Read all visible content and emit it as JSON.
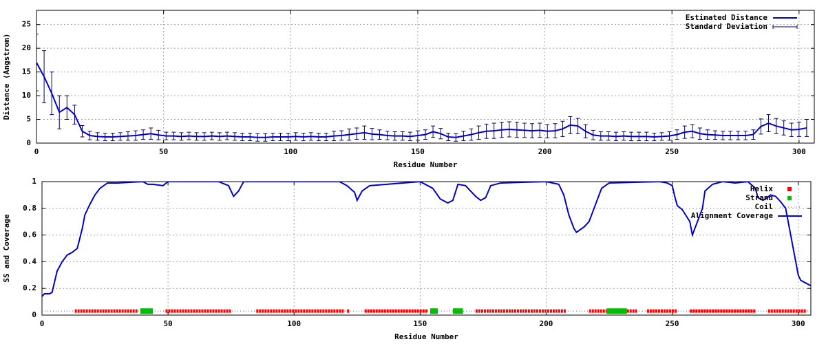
{
  "chart_data": [
    {
      "type": "errorline",
      "xlabel": "Residue Number",
      "ylabel": "Distance (Angstrom)",
      "xlim": [
        0,
        306
      ],
      "ylim": [
        0,
        28
      ],
      "xticks": [
        0,
        50,
        100,
        150,
        200,
        250,
        300
      ],
      "yticks": [
        0,
        5,
        10,
        15,
        20,
        25
      ],
      "grid": true,
      "legend": "top-right",
      "x": [
        0,
        3,
        6,
        9,
        12,
        15,
        18,
        21,
        24,
        27,
        30,
        33,
        36,
        39,
        42,
        45,
        48,
        51,
        54,
        57,
        60,
        63,
        66,
        69,
        72,
        75,
        78,
        81,
        84,
        87,
        90,
        93,
        96,
        99,
        102,
        105,
        108,
        111,
        114,
        117,
        120,
        123,
        126,
        129,
        132,
        135,
        138,
        141,
        144,
        147,
        150,
        153,
        156,
        159,
        162,
        165,
        168,
        171,
        174,
        177,
        180,
        183,
        186,
        189,
        192,
        195,
        198,
        201,
        204,
        207,
        210,
        213,
        216,
        219,
        222,
        225,
        228,
        231,
        234,
        237,
        240,
        243,
        246,
        249,
        252,
        255,
        258,
        261,
        264,
        267,
        270,
        273,
        276,
        279,
        282,
        285,
        288,
        291,
        294,
        297,
        300,
        303
      ],
      "series": [
        {
          "name": "Estimated Distance",
          "color": "#0000cc",
          "values": [
            17,
            14,
            10.5,
            6.5,
            7.5,
            6,
            2.5,
            1.6,
            1.4,
            1.3,
            1.3,
            1.4,
            1.5,
            1.6,
            1.8,
            2.0,
            1.7,
            1.5,
            1.5,
            1.4,
            1.5,
            1.4,
            1.4,
            1.5,
            1.4,
            1.5,
            1.4,
            1.3,
            1.3,
            1.2,
            1.2,
            1.3,
            1.3,
            1.3,
            1.4,
            1.3,
            1.4,
            1.3,
            1.3,
            1.5,
            1.6,
            1.8,
            2.0,
            2.2,
            1.9,
            1.8,
            1.6,
            1.5,
            1.5,
            1.4,
            1.6,
            1.8,
            2.4,
            2.0,
            1.3,
            1.2,
            1.5,
            1.8,
            2.2,
            2.5,
            2.6,
            2.8,
            2.9,
            2.8,
            2.7,
            2.6,
            2.7,
            2.5,
            2.6,
            3.0,
            3.8,
            3.6,
            2.5,
            1.7,
            1.5,
            1.5,
            1.4,
            1.5,
            1.4,
            1.4,
            1.4,
            1.3,
            1.4,
            1.5,
            1.8,
            2.3,
            2.5,
            2.0,
            1.8,
            1.7,
            1.6,
            1.6,
            1.6,
            1.6,
            1.8,
            3.5,
            4.2,
            3.6,
            3.2,
            2.8,
            2.9,
            3.2
          ]
        },
        {
          "name": "Standard Deviation",
          "color": "#000066",
          "values": [
            6,
            5.5,
            4.5,
            3.5,
            2.5,
            2,
            1.2,
            0.9,
            0.8,
            0.8,
            0.8,
            0.8,
            0.9,
            1,
            1,
            1.2,
            1,
            0.8,
            0.8,
            0.8,
            0.8,
            0.8,
            0.8,
            0.8,
            0.8,
            0.8,
            0.8,
            0.8,
            0.8,
            0.8,
            0.8,
            0.8,
            0.8,
            0.8,
            0.8,
            0.8,
            0.8,
            0.8,
            0.8,
            1,
            1,
            1.2,
            1.2,
            1.4,
            1.2,
            1,
            0.9,
            0.9,
            0.9,
            0.9,
            1,
            1,
            1.2,
            1.1,
            0.8,
            0.8,
            1,
            1.2,
            1.4,
            1.5,
            1.6,
            1.6,
            1.6,
            1.6,
            1.5,
            1.5,
            1.5,
            1.4,
            1.5,
            1.6,
            1.8,
            1.6,
            1.4,
            1,
            0.9,
            0.9,
            0.9,
            0.9,
            0.9,
            0.9,
            0.9,
            0.8,
            0.8,
            0.9,
            1,
            1.3,
            1.4,
            1.2,
            1,
            0.9,
            0.9,
            0.9,
            0.9,
            0.9,
            1,
            1.6,
            1.8,
            1.6,
            1.5,
            1.4,
            1.5,
            1.8
          ]
        }
      ]
    },
    {
      "type": "line",
      "xlabel": "Residue Number",
      "ylabel": "SS and Coverage",
      "xlim": [
        0,
        305
      ],
      "ylim": [
        0,
        1
      ],
      "xticks": [
        0,
        50,
        100,
        150,
        200,
        250,
        300
      ],
      "yticks": [
        0,
        0.2,
        0.4,
        0.6,
        0.8,
        1
      ],
      "grid": true,
      "legend": "top-right",
      "ss_level": 0.03,
      "ss": [
        {
          "name": "Helix",
          "color": "#ff0000",
          "ranges": [
            [
              13,
              38
            ],
            [
              49,
              75
            ],
            [
              85,
              120
            ],
            [
              121,
              122
            ],
            [
              128,
              153
            ],
            [
              172,
              208
            ],
            [
              217,
              224
            ],
            [
              232,
              236
            ],
            [
              240,
              252
            ],
            [
              257,
              283
            ],
            [
              288,
              303
            ]
          ]
        },
        {
          "name": "Strand",
          "color": "#00c000",
          "ranges": [
            [
              39,
              44
            ],
            [
              154,
              157
            ],
            [
              163,
              167
            ],
            [
              224,
              232
            ]
          ]
        },
        {
          "name": "Coil",
          "color": "#008080",
          "ranges": [
            [
              0,
              305
            ]
          ]
        }
      ],
      "series": [
        {
          "name": "Alignment Coverage",
          "color": "#0000cc",
          "x": [
            0,
            1,
            3,
            4,
            5,
            6,
            8,
            10,
            12,
            14,
            16,
            17,
            19,
            21,
            23,
            26,
            30,
            40,
            42,
            44,
            48,
            50,
            70,
            74,
            76,
            78,
            80,
            118,
            121,
            124,
            125,
            127,
            130,
            150,
            155,
            158,
            161,
            163,
            165,
            168,
            172,
            174,
            176,
            178,
            182,
            200,
            205,
            207,
            209,
            211,
            212,
            215,
            217,
            219,
            222,
            225,
            245,
            248,
            250,
            251,
            252,
            254,
            256,
            257,
            258,
            260,
            262,
            263,
            266,
            270,
            275,
            280,
            283,
            284,
            286,
            287,
            289,
            291,
            293,
            295,
            297,
            299,
            300,
            301,
            303,
            305
          ],
          "values": [
            0.14,
            0.16,
            0.16,
            0.17,
            0.25,
            0.33,
            0.4,
            0.45,
            0.47,
            0.5,
            0.65,
            0.75,
            0.83,
            0.9,
            0.95,
            0.99,
            0.99,
            1.0,
            0.98,
            0.98,
            0.97,
            1.0,
            1.0,
            0.97,
            0.89,
            0.93,
            1.0,
            1.0,
            0.97,
            0.92,
            0.86,
            0.93,
            0.97,
            1.0,
            0.95,
            0.87,
            0.84,
            0.86,
            0.98,
            0.97,
            0.89,
            0.86,
            0.88,
            0.97,
            0.99,
            1.0,
            0.98,
            0.9,
            0.75,
            0.65,
            0.62,
            0.66,
            0.7,
            0.8,
            0.95,
            0.99,
            1.0,
            0.99,
            0.97,
            0.89,
            0.82,
            0.79,
            0.73,
            0.7,
            0.6,
            0.7,
            0.8,
            0.93,
            0.98,
            1.0,
            0.99,
            1.0,
            0.95,
            0.88,
            0.86,
            0.87,
            0.9,
            0.89,
            0.85,
            0.8,
            0.6,
            0.4,
            0.3,
            0.26,
            0.24,
            0.22
          ]
        }
      ]
    }
  ]
}
